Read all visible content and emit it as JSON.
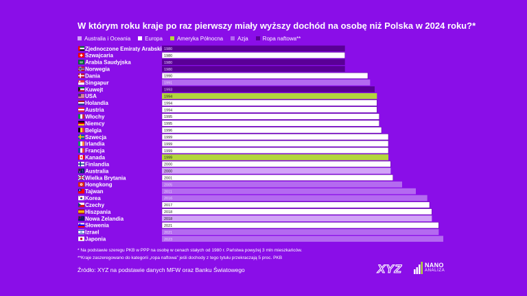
{
  "title": "W którym roku kraje po raz pierwszy miały wyższy dochód na osobę niż Polska w 2024 roku?*",
  "legend": [
    {
      "label": "Australia i Oceania",
      "color": "#d2a4f7"
    },
    {
      "label": "Europa",
      "color": "#ffffff"
    },
    {
      "label": "Ameryka Północna",
      "color": "#b3d63c"
    },
    {
      "label": "Azja",
      "color": "#b46af0"
    },
    {
      "label": "Ropa naftowa**",
      "color": "#5a0096"
    }
  ],
  "chart_data": {
    "type": "bar",
    "orientation": "horizontal",
    "categories": [
      "Zjednoczone Emiraty Arabskie",
      "Szwajcaria",
      "Arabia Saudyjska",
      "Norwegia",
      "Dania",
      "Singapur",
      "Kuwejt",
      "USA",
      "Holandia",
      "Austria",
      "Włochy",
      "Niemcy",
      "Belgia",
      "Szwecja",
      "Irlandia",
      "Francja",
      "Kanada",
      "Finlandia",
      "Australia",
      "Wielka Brytania",
      "Hongkong",
      "Tajwan",
      "Korea",
      "Czechy",
      "Hiszpania",
      "Nowa Zelandia",
      "Słowenia",
      "Izrael",
      "Japonia"
    ],
    "values": [
      1980,
      1980,
      1980,
      1980,
      1990,
      1991,
      1993,
      1994,
      1994,
      1994,
      1995,
      1995,
      1996,
      1999,
      1999,
      1999,
      1999,
      2000,
      2000,
      2001,
      2005,
      2011,
      2016,
      2017,
      2018,
      2018,
      2021,
      2021,
      2023
    ],
    "groups": [
      "Ropa naftowa**",
      "Europa",
      "Ropa naftowa**",
      "Ropa naftowa**",
      "Europa",
      "Azja",
      "Ropa naftowa**",
      "Ameryka Północna",
      "Europa",
      "Europa",
      "Europa",
      "Europa",
      "Europa",
      "Europa",
      "Europa",
      "Europa",
      "Ameryka Północna",
      "Europa",
      "Australia i Oceania",
      "Europa",
      "Azja",
      "Azja",
      "Azja",
      "Europa",
      "Europa",
      "Australia i Oceania",
      "Europa",
      "Azja",
      "Azja"
    ],
    "xlim": [
      1900,
      2023
    ]
  },
  "flag_icons": [
    "uae-flag-icon",
    "switzerland-flag-icon",
    "saudi-arabia-flag-icon",
    "norway-flag-icon",
    "denmark-flag-icon",
    "singapore-flag-icon",
    "kuwait-flag-icon",
    "usa-flag-icon",
    "netherlands-flag-icon",
    "austria-flag-icon",
    "italy-flag-icon",
    "germany-flag-icon",
    "belgium-flag-icon",
    "sweden-flag-icon",
    "ireland-flag-icon",
    "france-flag-icon",
    "canada-flag-icon",
    "finland-flag-icon",
    "australia-flag-icon",
    "uk-flag-icon",
    "hong-kong-flag-icon",
    "taiwan-flag-icon",
    "south-korea-flag-icon",
    "czechia-flag-icon",
    "spain-flag-icon",
    "new-zealand-flag-icon",
    "slovenia-flag-icon",
    "israel-flag-icon",
    "japan-flag-icon"
  ],
  "footnote1": "* Na podstawie szeregu PKB w PPP na osobę w cenach stałych od 1980 r. Państwa powyżej 3 mln mieszkańców.",
  "footnote2": "**Kraje zaszeregowano do kategorii „ropa naftowa” jeśli dochody z tego tytułu przekraczają 5 proc. PKB",
  "source": "Źródło: XYZ na podstawie danych MFW oraz Banku Światowego",
  "logo_xyz": "XYZ",
  "logo_nano": "NANO",
  "logo_analiza": "ANALIZA"
}
